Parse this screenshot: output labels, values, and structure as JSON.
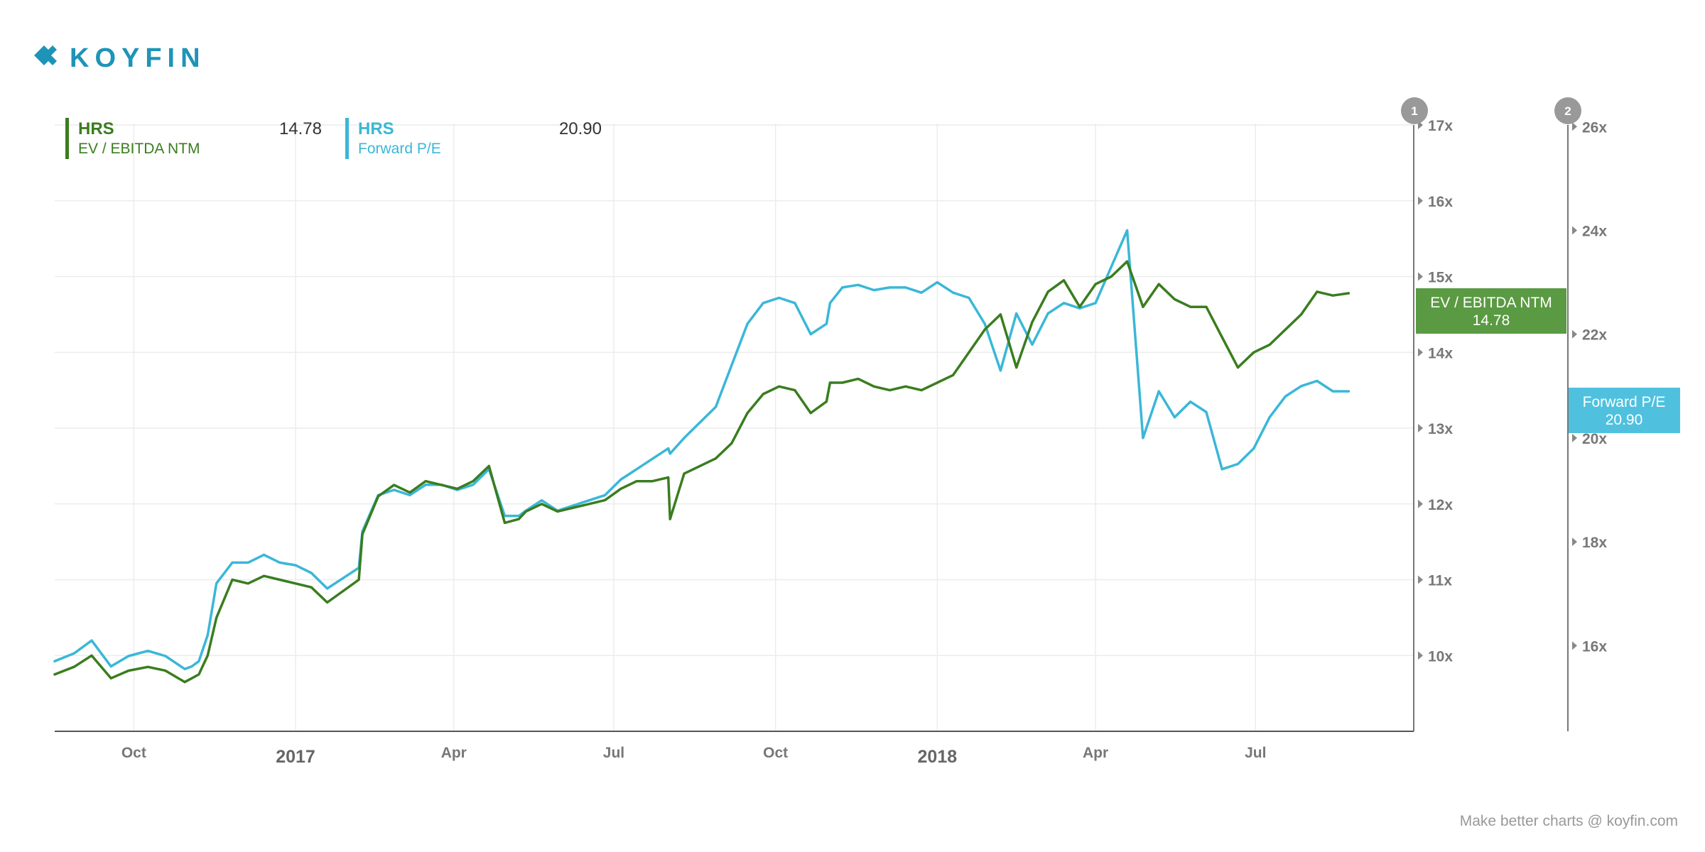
{
  "brand": {
    "logo_text": "KOYFIN",
    "footer": "Make better charts @ koyfin.com"
  },
  "colors": {
    "green": "#3a7d1f",
    "blue": "#3ab7d8",
    "green_tag": "#5a9a43",
    "blue_tag": "#4fc1df"
  },
  "legend": [
    {
      "symbol": "HRS",
      "name": "EV / EBITDA NTM",
      "value": "14.78",
      "color": "#3a7d1f"
    },
    {
      "symbol": "HRS",
      "name": "Forward P/E",
      "value": "20.90",
      "color": "#3ab7d8"
    }
  ],
  "axis_badges": [
    "1",
    "2"
  ],
  "tags": [
    {
      "name": "EV / EBITDA NTM",
      "value": "14.78",
      "color": "#5a9a43"
    },
    {
      "name": "Forward P/E",
      "value": "20.90",
      "color": "#4fc1df"
    }
  ],
  "chart_data": {
    "type": "line",
    "x_tick_labels": [
      "Oct",
      "2017",
      "Apr",
      "Jul",
      "Oct",
      "2018",
      "Apr",
      "Jul"
    ],
    "x_tick_dates": [
      "2016-10-01",
      "2017-01-01",
      "2017-04-01",
      "2017-07-01",
      "2017-10-01",
      "2018-01-01",
      "2018-04-01",
      "2018-07-01"
    ],
    "x_tick_is_year": [
      false,
      true,
      false,
      false,
      false,
      true,
      false,
      false
    ],
    "xlim": [
      "2016-08-17",
      "2018-09-29"
    ],
    "axes": [
      {
        "id": "1",
        "ylim": [
          9.0,
          17.15
        ],
        "ticks": [
          "10x",
          "11x",
          "12x",
          "13x",
          "14x",
          "15x",
          "16x",
          "17x"
        ],
        "tick_values": [
          10,
          11,
          12,
          13,
          14,
          15,
          16,
          17
        ]
      },
      {
        "id": "2",
        "ylim": [
          14.35,
          26.25
        ],
        "ticks": [
          "16x",
          "18x",
          "20x",
          "22x",
          "24x",
          "26x"
        ],
        "tick_values": [
          16,
          18,
          20,
          22,
          24,
          26
        ]
      }
    ],
    "grid": true,
    "legend_position": "top-left",
    "series": [
      {
        "name": "EV / EBITDA NTM",
        "axis": 0,
        "x": [
          "2016-08-17",
          "2016-08-28",
          "2016-09-07",
          "2016-09-18",
          "2016-09-28",
          "2016-10-09",
          "2016-10-19",
          "2016-10-30",
          "2016-11-03",
          "2016-11-07",
          "2016-11-12",
          "2016-11-17",
          "2016-11-26",
          "2016-12-05",
          "2016-12-14",
          "2016-12-23",
          "2017-01-01",
          "2017-01-10",
          "2017-01-19",
          "2017-01-28",
          "2017-02-06",
          "2017-02-08",
          "2017-02-17",
          "2017-02-26",
          "2017-03-07",
          "2017-03-16",
          "2017-03-25",
          "2017-04-03",
          "2017-04-12",
          "2017-04-21",
          "2017-04-30",
          "2017-05-08",
          "2017-05-12",
          "2017-05-21",
          "2017-05-30",
          "2017-06-08",
          "2017-06-17",
          "2017-06-26",
          "2017-07-05",
          "2017-07-14",
          "2017-07-23",
          "2017-08-01",
          "2017-08-02",
          "2017-08-10",
          "2017-08-19",
          "2017-08-28",
          "2017-09-06",
          "2017-09-15",
          "2017-09-24",
          "2017-10-03",
          "2017-10-12",
          "2017-10-21",
          "2017-10-30",
          "2017-11-01",
          "2017-11-08",
          "2017-11-17",
          "2017-11-26",
          "2017-12-05",
          "2017-12-14",
          "2017-12-23",
          "2018-01-01",
          "2018-01-10",
          "2018-01-19",
          "2018-01-28",
          "2018-02-06",
          "2018-02-15",
          "2018-02-24",
          "2018-03-05",
          "2018-03-14",
          "2018-03-23",
          "2018-04-01",
          "2018-04-10",
          "2018-04-19",
          "2018-04-28",
          "2018-05-07",
          "2018-05-16",
          "2018-05-25",
          "2018-06-03",
          "2018-06-12",
          "2018-06-21",
          "2018-06-30",
          "2018-07-09",
          "2018-07-18",
          "2018-07-27",
          "2018-08-05",
          "2018-08-14",
          "2018-08-23"
        ],
        "y": [
          9.75,
          9.85,
          10.0,
          9.7,
          9.8,
          9.85,
          9.8,
          9.65,
          9.7,
          9.75,
          10.0,
          10.5,
          11.0,
          10.95,
          11.05,
          11.0,
          10.95,
          10.9,
          10.7,
          10.85,
          11.0,
          11.6,
          12.1,
          12.25,
          12.15,
          12.3,
          12.25,
          12.2,
          12.3,
          12.5,
          11.75,
          11.8,
          11.9,
          12.0,
          11.9,
          11.95,
          12.0,
          12.05,
          12.2,
          12.3,
          12.3,
          12.35,
          11.8,
          12.4,
          12.5,
          12.6,
          12.8,
          13.2,
          13.45,
          13.55,
          13.5,
          13.2,
          13.35,
          13.6,
          13.6,
          13.65,
          13.55,
          13.5,
          13.55,
          13.5,
          13.6,
          13.7,
          14.0,
          14.3,
          14.5,
          13.8,
          14.4,
          14.8,
          14.95,
          14.6,
          14.9,
          15.0,
          15.2,
          14.6,
          14.9,
          14.7,
          14.6,
          14.6,
          14.2,
          13.8,
          14.0,
          14.1,
          14.3,
          14.5,
          14.8,
          14.75,
          14.78
        ]
      },
      {
        "name": "Forward P/E",
        "axis": 1,
        "x": [
          "2016-08-17",
          "2016-08-28",
          "2016-09-07",
          "2016-09-18",
          "2016-09-28",
          "2016-10-09",
          "2016-10-19",
          "2016-10-30",
          "2016-11-03",
          "2016-11-07",
          "2016-11-12",
          "2016-11-17",
          "2016-11-26",
          "2016-12-05",
          "2016-12-14",
          "2016-12-23",
          "2017-01-01",
          "2017-01-10",
          "2017-01-19",
          "2017-01-28",
          "2017-02-06",
          "2017-02-08",
          "2017-02-17",
          "2017-02-26",
          "2017-03-07",
          "2017-03-16",
          "2017-03-25",
          "2017-04-03",
          "2017-04-12",
          "2017-04-21",
          "2017-04-30",
          "2017-05-08",
          "2017-05-12",
          "2017-05-21",
          "2017-05-30",
          "2017-06-08",
          "2017-06-17",
          "2017-06-26",
          "2017-07-05",
          "2017-07-14",
          "2017-07-23",
          "2017-08-01",
          "2017-08-02",
          "2017-08-10",
          "2017-08-19",
          "2017-08-28",
          "2017-09-06",
          "2017-09-15",
          "2017-09-24",
          "2017-10-03",
          "2017-10-12",
          "2017-10-21",
          "2017-10-30",
          "2017-11-01",
          "2017-11-08",
          "2017-11-17",
          "2017-11-26",
          "2017-12-05",
          "2017-12-14",
          "2017-12-23",
          "2018-01-01",
          "2018-01-10",
          "2018-01-19",
          "2018-01-28",
          "2018-02-06",
          "2018-02-15",
          "2018-02-24",
          "2018-03-05",
          "2018-03-14",
          "2018-03-23",
          "2018-04-01",
          "2018-04-10",
          "2018-04-19",
          "2018-04-28",
          "2018-05-07",
          "2018-05-16",
          "2018-05-25",
          "2018-06-03",
          "2018-06-12",
          "2018-06-21",
          "2018-06-30",
          "2018-07-09",
          "2018-07-18",
          "2018-07-27",
          "2018-08-05",
          "2018-08-14",
          "2018-08-23"
        ],
        "y": [
          15.7,
          15.85,
          16.1,
          15.6,
          15.8,
          15.9,
          15.8,
          15.55,
          15.6,
          15.7,
          16.2,
          17.2,
          17.6,
          17.6,
          17.75,
          17.6,
          17.55,
          17.4,
          17.1,
          17.3,
          17.5,
          18.2,
          18.9,
          19.0,
          18.9,
          19.1,
          19.1,
          19.0,
          19.1,
          19.4,
          18.5,
          18.5,
          18.6,
          18.8,
          18.6,
          18.7,
          18.8,
          18.9,
          19.2,
          19.4,
          19.6,
          19.8,
          19.7,
          20.0,
          20.3,
          20.6,
          21.4,
          22.2,
          22.6,
          22.7,
          22.6,
          22.0,
          22.2,
          22.6,
          22.9,
          22.95,
          22.85,
          22.9,
          22.9,
          22.8,
          23.0,
          22.8,
          22.7,
          22.2,
          21.3,
          22.4,
          21.8,
          22.4,
          22.6,
          22.5,
          22.6,
          23.3,
          24.0,
          20.0,
          20.9,
          20.4,
          20.7,
          20.5,
          19.4,
          19.5,
          19.8,
          20.4,
          20.8,
          21.0,
          21.1,
          20.9,
          20.9
        ]
      }
    ]
  }
}
